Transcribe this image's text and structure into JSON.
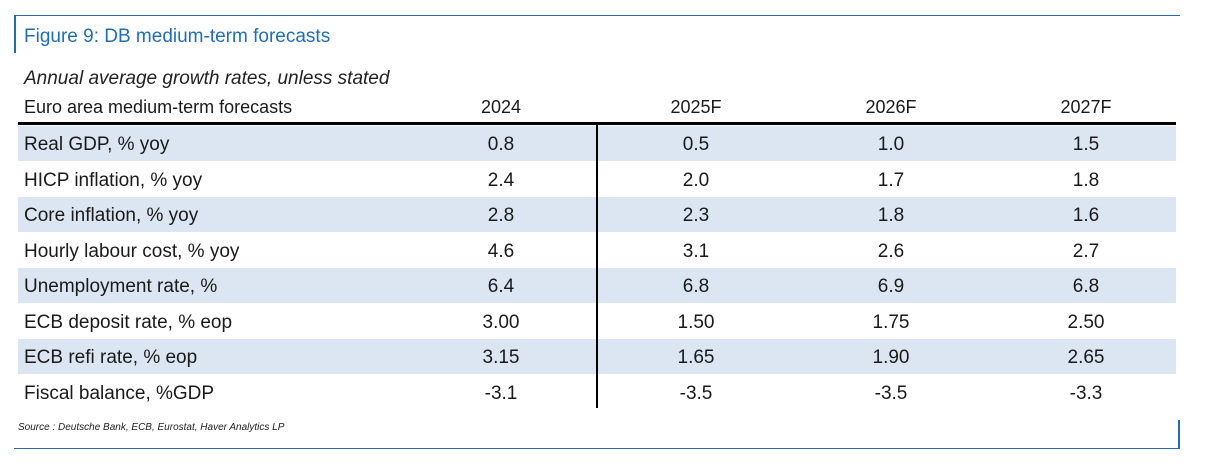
{
  "figure_title": "Figure 9: DB medium-term forecasts",
  "subtitle": "Annual average growth rates, unless stated",
  "table": {
    "headers": [
      "Euro area medium-term forecasts",
      "2024",
      "2025F",
      "2026F",
      "2027F"
    ],
    "rows": [
      {
        "label": "Real GDP, % yoy",
        "values": [
          "0.8",
          "0.5",
          "1.0",
          "1.5"
        ]
      },
      {
        "label": "HICP inflation, % yoy",
        "values": [
          "2.4",
          "2.0",
          "1.7",
          "1.8"
        ]
      },
      {
        "label": "Core inflation, % yoy",
        "values": [
          "2.8",
          "2.3",
          "1.8",
          "1.6"
        ]
      },
      {
        "label": "Hourly labour cost, % yoy",
        "values": [
          "4.6",
          "3.1",
          "2.6",
          "2.7"
        ]
      },
      {
        "label": "Unemployment rate, %",
        "values": [
          "6.4",
          "6.8",
          "6.9",
          "6.8"
        ]
      },
      {
        "label": "ECB deposit rate, % eop",
        "values": [
          "3.00",
          "1.50",
          "1.75",
          "2.50"
        ]
      },
      {
        "label": "ECB refi rate, % eop",
        "values": [
          "3.15",
          "1.65",
          "1.90",
          "2.65"
        ]
      },
      {
        "label": "Fiscal balance, %GDP",
        "values": [
          "-3.1",
          "-3.5",
          "-3.5",
          "-3.3"
        ]
      }
    ]
  },
  "source": "Source : Deutsche Bank, ECB, Eurostat, Haver Analytics LP",
  "colors": {
    "accent": "#1f6fb5",
    "row_shade": "#dce6f2"
  }
}
